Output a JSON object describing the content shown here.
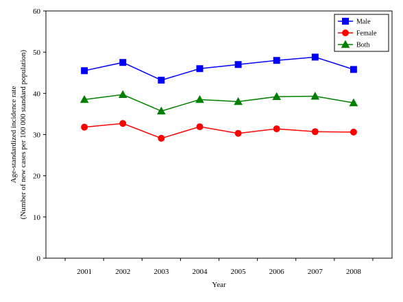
{
  "chart_data": {
    "type": "line",
    "x": [
      "2001",
      "2002",
      "2003",
      "2004",
      "2005",
      "2006",
      "2007",
      "2008"
    ],
    "xlabel": "Year",
    "ylabel_line1": "Age-standardized incidence rate",
    "ylabel_line2": "(Number of new cases per 100 000 standard population)",
    "ylim": [
      0,
      60
    ],
    "yticks": [
      0,
      10,
      20,
      30,
      40,
      50,
      60
    ],
    "grid": false,
    "legend_position": "top-right",
    "series": [
      {
        "name": "Male",
        "color": "#0000ff",
        "marker": "square",
        "values": [
          45.5,
          47.5,
          43.2,
          46.0,
          47.0,
          48.0,
          48.8,
          45.8
        ]
      },
      {
        "name": "Female",
        "color": "#ff0000",
        "marker": "circle",
        "values": [
          31.8,
          32.7,
          29.1,
          31.9,
          30.3,
          31.4,
          30.7,
          30.6
        ]
      },
      {
        "name": "Both",
        "color": "#008000",
        "marker": "triangle",
        "values": [
          38.5,
          39.7,
          35.7,
          38.5,
          38.0,
          39.2,
          39.3,
          37.7
        ]
      }
    ]
  }
}
